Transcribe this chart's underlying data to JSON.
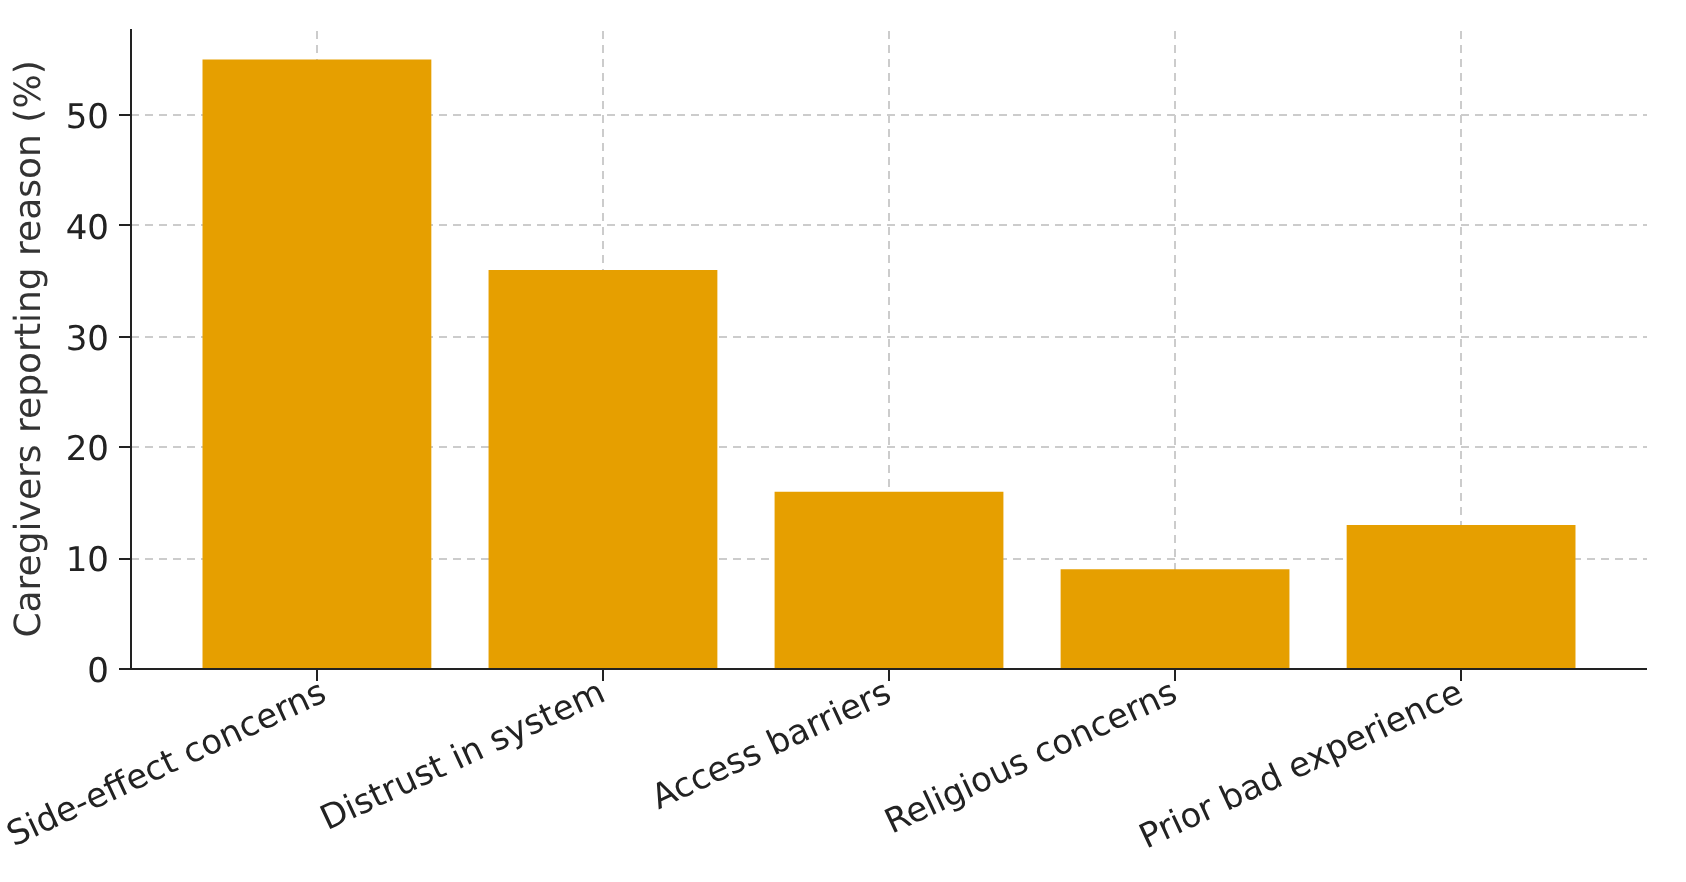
{
  "chart_data": {
    "type": "bar",
    "ylabel": "Caregivers reporting reason (%)",
    "categories": [
      "Side-effect concerns",
      "Distrust in system",
      "Access barriers",
      "Religious concerns",
      "Prior bad experience"
    ],
    "values": [
      55,
      36,
      16,
      9,
      13
    ],
    "color": "#e69f00",
    "ylim": [
      0,
      57.75
    ],
    "yticks": [
      0,
      10,
      20,
      30,
      40,
      50
    ],
    "grid": true
  }
}
